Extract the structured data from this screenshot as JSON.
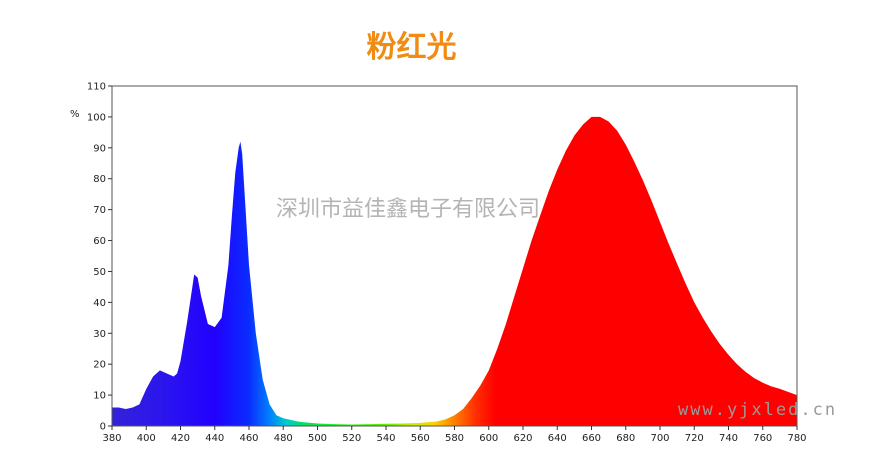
{
  "chart_data": {
    "type": "area",
    "title": "粉红光",
    "xlabel": "",
    "ylabel": "%",
    "xlim": [
      380,
      780
    ],
    "ylim": [
      0,
      110
    ],
    "x_ticks": [
      380,
      400,
      420,
      440,
      460,
      480,
      500,
      520,
      540,
      560,
      580,
      600,
      620,
      640,
      660,
      680,
      700,
      720,
      740,
      760,
      780
    ],
    "y_ticks": [
      0,
      10,
      20,
      30,
      40,
      50,
      60,
      70,
      80,
      90,
      100,
      110
    ],
    "grid": false,
    "legend": "none",
    "series": [
      {
        "x": [
          380,
          384,
          388,
          392,
          396,
          400,
          404,
          408,
          412,
          416,
          418,
          420,
          424,
          428,
          430,
          432,
          436,
          440,
          444,
          448,
          450,
          452,
          454,
          455,
          456,
          458,
          460,
          464,
          468,
          472,
          476,
          480,
          484,
          488,
          492,
          496,
          500,
          510,
          520,
          530,
          540,
          550,
          560,
          570,
          575,
          580,
          585,
          590,
          595,
          600,
          605,
          610,
          615,
          620,
          625,
          630,
          635,
          640,
          645,
          650,
          655,
          660,
          665,
          670,
          675,
          680,
          685,
          690,
          695,
          700,
          705,
          710,
          715,
          720,
          725,
          730,
          735,
          740,
          745,
          750,
          755,
          760,
          765,
          770,
          775,
          780
        ],
        "values": [
          6,
          6,
          5.5,
          6,
          7,
          12,
          16,
          18,
          17,
          16,
          17,
          21,
          34,
          49,
          48,
          42,
          33,
          32,
          35,
          52,
          68,
          82,
          90,
          92,
          88,
          70,
          52,
          30,
          15,
          7,
          3.5,
          2.5,
          2,
          1.5,
          1.2,
          1,
          0.8,
          0.6,
          0.5,
          0.6,
          0.7,
          0.8,
          1,
          1.5,
          2.2,
          3.5,
          5.5,
          9,
          13,
          18,
          25,
          33,
          42,
          51,
          60,
          68,
          76,
          83,
          89,
          94,
          97.5,
          100,
          100,
          98.5,
          95.5,
          91,
          85.5,
          79.5,
          73,
          66,
          59,
          52.5,
          46,
          40,
          35,
          30.5,
          26.5,
          23,
          20,
          17.5,
          15.5,
          14,
          12.8,
          12,
          11,
          10
        ]
      }
    ]
  },
  "watermark": "深圳市益佳鑫电子有限公司",
  "url": "www.yjxled.cn"
}
